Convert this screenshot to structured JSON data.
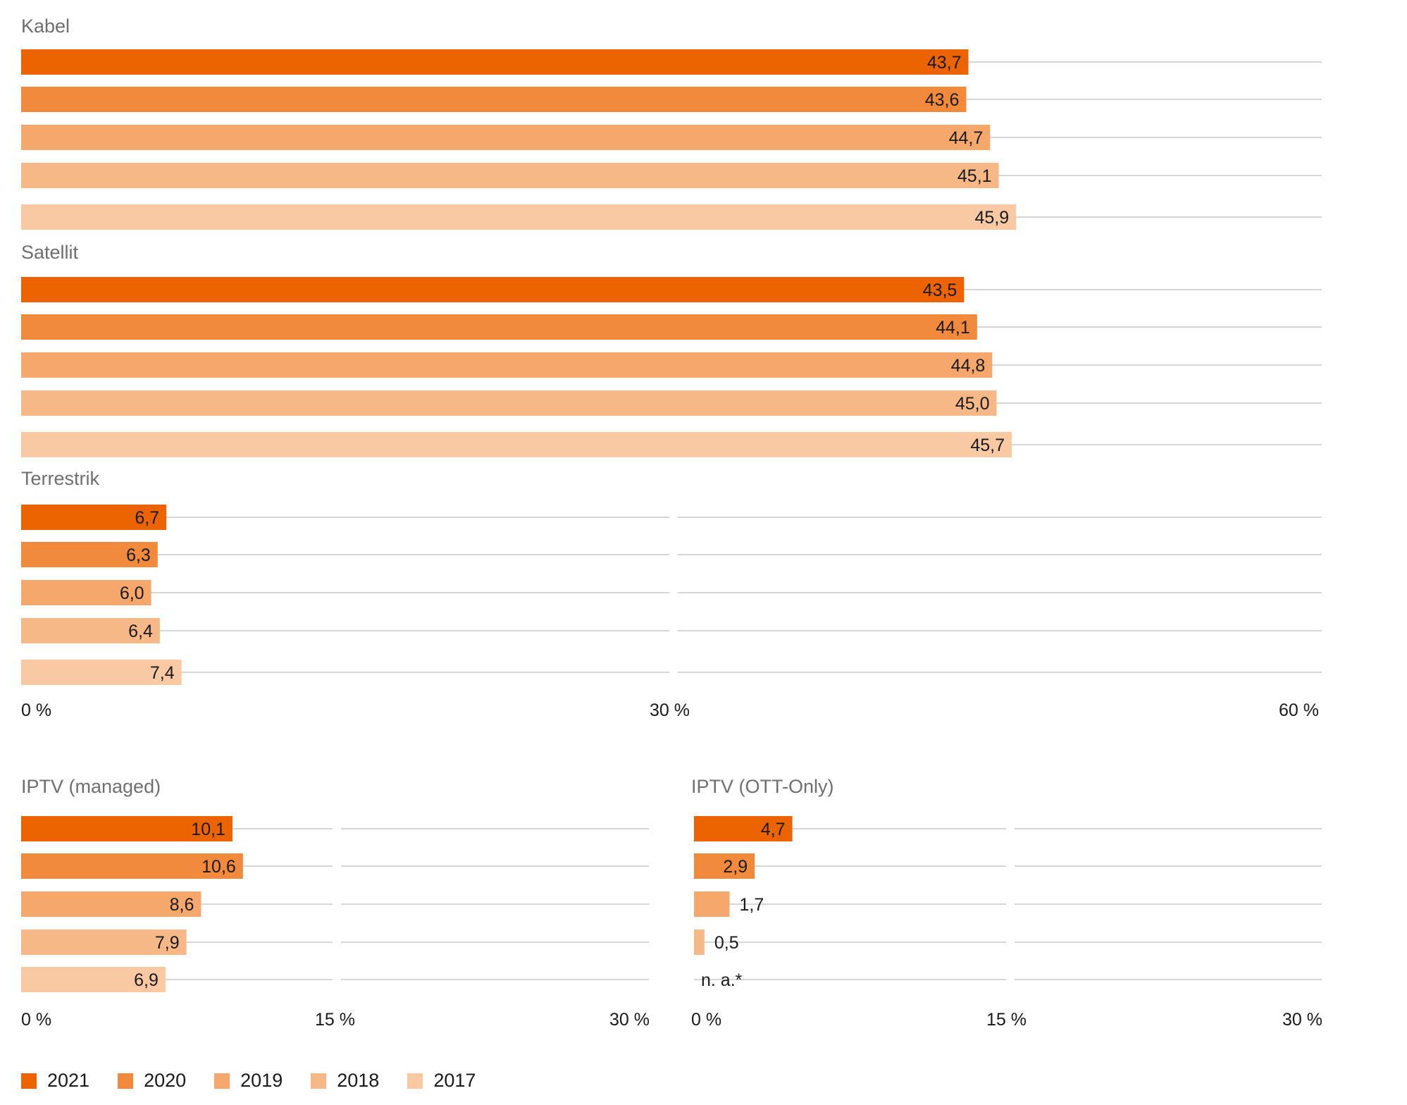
{
  "colors": {
    "2021": "#ec6302",
    "2020": "#f28a3e",
    "2019": "#f5a76c",
    "2018": "#f7b888",
    "2017": "#f9c9a3",
    "gridline": "#c8c8c8",
    "title": "#6f6f6f"
  },
  "legend": [
    "2021",
    "2020",
    "2019",
    "2018",
    "2017"
  ],
  "chart_data": [
    {
      "type": "bar",
      "orientation": "horizontal",
      "title": "Kabel",
      "series_names": [
        "2021",
        "2020",
        "2019",
        "2018",
        "2017"
      ],
      "values": [
        43.7,
        43.6,
        44.7,
        45.1,
        45.9
      ],
      "labels": [
        "43,7",
        "43,6",
        "44,7",
        "45,1",
        "45,9"
      ],
      "xlim": [
        0,
        60
      ]
    },
    {
      "type": "bar",
      "orientation": "horizontal",
      "title": "Satellit",
      "series_names": [
        "2021",
        "2020",
        "2019",
        "2018",
        "2017"
      ],
      "values": [
        43.5,
        44.1,
        44.8,
        45.0,
        45.7
      ],
      "labels": [
        "43,5",
        "44,1",
        "44,8",
        "45,0",
        "45,7"
      ],
      "xlim": [
        0,
        60
      ]
    },
    {
      "type": "bar",
      "orientation": "horizontal",
      "title": "Terrestrik",
      "series_names": [
        "2021",
        "2020",
        "2019",
        "2018",
        "2017"
      ],
      "values": [
        6.7,
        6.3,
        6.0,
        6.4,
        7.4
      ],
      "labels": [
        "6,7",
        "6,3",
        "6,0",
        "6,4",
        "7,4"
      ],
      "xlim": [
        0,
        60
      ],
      "ticks": [
        "0 %",
        "30 %",
        "60 %"
      ]
    },
    {
      "type": "bar",
      "orientation": "horizontal",
      "title": "IPTV (managed)",
      "series_names": [
        "2021",
        "2020",
        "2019",
        "2018",
        "2017"
      ],
      "values": [
        10.1,
        10.6,
        8.6,
        7.9,
        6.9
      ],
      "labels": [
        "10,1",
        "10,6",
        "8,6",
        "7,9",
        "6,9"
      ],
      "xlim": [
        0,
        30
      ],
      "ticks": [
        "0 %",
        "15 %",
        "30 %"
      ]
    },
    {
      "type": "bar",
      "orientation": "horizontal",
      "title": "IPTV (OTT-Only)",
      "series_names": [
        "2021",
        "2020",
        "2019",
        "2018",
        "2017"
      ],
      "values": [
        4.7,
        2.9,
        1.7,
        0.5,
        null
      ],
      "labels": [
        "4,7",
        "2,9",
        "1,7",
        "0,5",
        "n. a.*"
      ],
      "xlim": [
        0,
        30
      ],
      "ticks": [
        "0 %",
        "15 %",
        "30 %"
      ]
    }
  ]
}
